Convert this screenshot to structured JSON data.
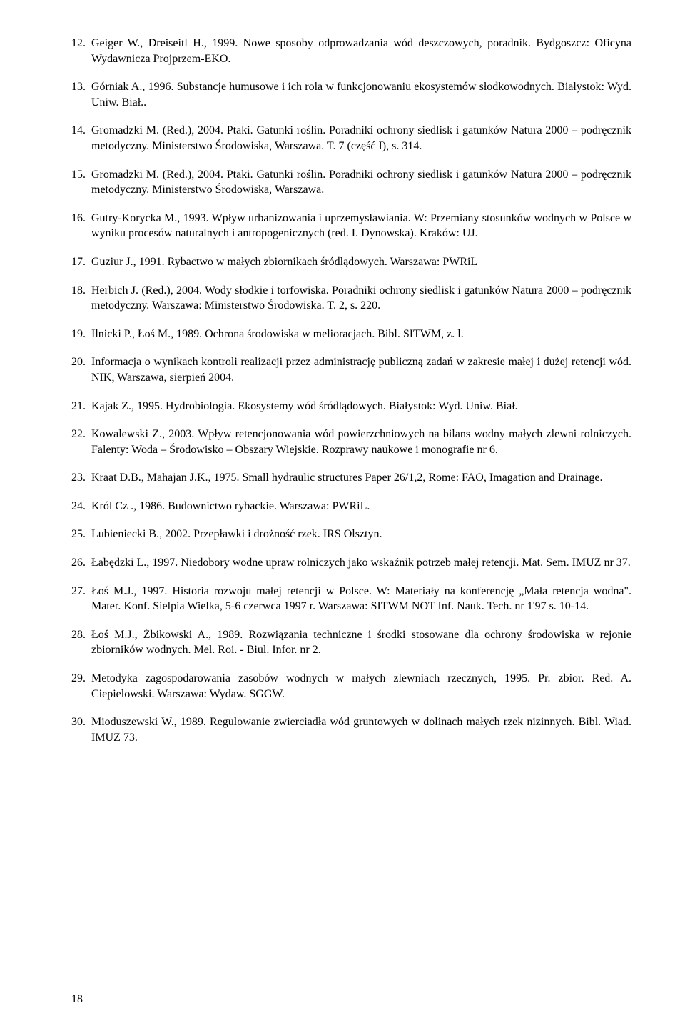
{
  "page_number": "18",
  "references": [
    {
      "text": "Geiger W., Dreiseitl H., 1999. Nowe sposoby odprowadzania wód deszczowych, poradnik. Bydgoszcz: Oficyna Wydawnicza Projprzem-EKO."
    },
    {
      "text": "Górniak A., 1996. Substancje humusowe i ich rola w funkcjonowaniu ekosystemów słodkowodnych. Białystok: Wyd. Uniw. Biał.."
    },
    {
      "text": "Gromadzki M. (Red.), 2004. Ptaki. Gatunki roślin. Poradniki ochrony siedlisk i gatunków Natura 2000 – podręcznik metodyczny. Ministerstwo Środowiska, Warszawa. T. 7 (część I), s. 314."
    },
    {
      "text": "Gromadzki M. (Red.), 2004. Ptaki. Gatunki roślin. Poradniki ochrony siedlisk i gatunków Natura 2000 – podręcznik metodyczny. Ministerstwo Środowiska, Warszawa."
    },
    {
      "text": "Gutry-Korycka M., 1993. Wpływ urbanizowania i uprzemysławiania. W: Przemiany stosunków wodnych w Polsce w wyniku procesów naturalnych i antropogenicznych (red. I. Dynowska). Kraków: UJ."
    },
    {
      "text": "Guziur J., 1991. Rybactwo w małych zbiornikach śródlądowych. Warszawa: PWRiL"
    },
    {
      "text": "Herbich J. (Red.), 2004. Wody słodkie i torfowiska. Poradniki ochrony siedlisk i gatunków Natura 2000 – podręcznik metodyczny. Warszawa: Ministerstwo Środowiska. T. 2, s. 220."
    },
    {
      "text": "Ilnicki P., Łoś M., 1989. Ochrona środowiska w melioracjach. Bibl. SITWM, z. l."
    },
    {
      "text": "Informacja o wynikach kontroli realizacji przez administrację publiczną zadań w zakresie małej i dużej retencji wód. NIK, Warszawa, sierpień 2004."
    },
    {
      "text": "Kajak Z., 1995. Hydrobiologia. Ekosystemy wód śródlądowych. Białystok: Wyd. Uniw. Biał."
    },
    {
      "text": "Kowalewski Z., 2003. Wpływ retencjonowania wód powierzchniowych na bilans wodny małych zlewni rolniczych. Falenty: Woda – Środowisko – Obszary Wiejskie. Rozprawy naukowe i monografie nr 6."
    },
    {
      "text": "Kraat D.B., Mahajan J.K., 1975. Small hydraulic structures Paper 26/1,2, Rome: FAO, Imagation and Drainage."
    },
    {
      "text": "Król  Cz ., 1986. Budownictwo rybackie. Warszawa: PWRiL."
    },
    {
      "text": "Lubieniecki B., 2002. Przepławki i drożność rzek. IRS Olsztyn."
    },
    {
      "text": "Łabędzki L., 1997. Niedobory wodne upraw rolniczych jako wskaźnik potrzeb małej retencji. Mat. Sem. IMUZ nr 37."
    },
    {
      "text": "Łoś M.J., 1997. Historia rozwoju małej retencji w Polsce. W: Materiały na konferencję „Mała retencja wodna\". Mater. Konf. Sielpia Wielka, 5-6 czerwca 1997 r. Warszawa: SITWM NOT Inf. Nauk. Tech. nr 1'97 s. 10-14."
    },
    {
      "text": "Łoś M.J., Żbikowski A., 1989. Rozwiązania techniczne i środki stosowane dla ochrony środowiska w rejonie zbiorników wodnych. Mel. Roi. - Biul. Infor. nr 2."
    },
    {
      "text": "Metodyka zagospodarowania zasobów wodnych w małych zlewniach rzecznych, 1995. Pr. zbior. Red. A. Ciepielowski. Warszawa: Wydaw. SGGW."
    },
    {
      "text": "Mioduszewski W., 1989. Regulowanie zwierciadła wód gruntowych w dolinach małych rzek nizinnych. Bibl. Wiad. IMUZ 73."
    }
  ]
}
